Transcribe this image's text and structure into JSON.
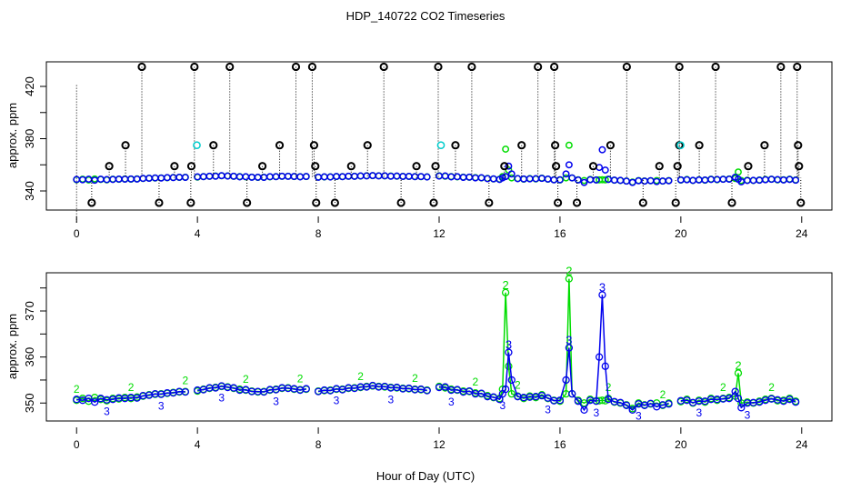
{
  "chart_data": [
    {
      "type": "scatter",
      "title": "HDP_140722  CO2 Timeseries",
      "xlabel": "",
      "ylabel": "approx. ppm",
      "xlim": [
        -1,
        25
      ],
      "ylim": [
        325.4,
        438.8
      ],
      "xticks": [
        0,
        4,
        8,
        12,
        16,
        20,
        24
      ],
      "yticks": [
        340,
        360,
        380,
        400,
        420
      ],
      "ytick_labels": [
        "340",
        "",
        "380",
        "",
        "420"
      ],
      "outliers_color": "#000000",
      "outliers": [
        [
          0.5,
          331
        ],
        [
          1.08,
          359
        ],
        [
          1.62,
          375
        ],
        [
          2.16,
          435
        ],
        [
          2.73,
          331
        ],
        [
          3.24,
          359
        ],
        [
          3.78,
          331
        ],
        [
          3.8,
          359
        ],
        [
          3.9,
          435
        ],
        [
          4.53,
          375
        ],
        [
          5.07,
          435
        ],
        [
          5.64,
          331
        ],
        [
          6.15,
          359
        ],
        [
          6.72,
          375
        ],
        [
          7.26,
          435
        ],
        [
          7.8,
          435
        ],
        [
          7.86,
          375
        ],
        [
          7.9,
          359
        ],
        [
          7.93,
          331
        ],
        [
          8.55,
          331
        ],
        [
          9.09,
          359
        ],
        [
          9.63,
          375
        ],
        [
          10.17,
          435
        ],
        [
          10.74,
          331
        ],
        [
          11.25,
          359
        ],
        [
          11.82,
          331
        ],
        [
          11.88,
          359
        ],
        [
          11.97,
          435
        ],
        [
          12.54,
          375
        ],
        [
          13.08,
          435
        ],
        [
          13.65,
          331
        ],
        [
          14.16,
          359
        ],
        [
          14.73,
          375
        ],
        [
          15.27,
          435
        ],
        [
          15.81,
          435
        ],
        [
          15.84,
          375
        ],
        [
          15.87,
          359
        ],
        [
          15.93,
          331
        ],
        [
          16.56,
          331
        ],
        [
          17.1,
          359
        ],
        [
          17.67,
          375
        ],
        [
          18.21,
          435
        ],
        [
          18.75,
          331
        ],
        [
          19.29,
          359
        ],
        [
          19.83,
          331
        ],
        [
          19.89,
          359
        ],
        [
          19.95,
          375
        ],
        [
          19.95,
          435
        ],
        [
          20.61,
          375
        ],
        [
          21.15,
          435
        ],
        [
          21.69,
          331
        ],
        [
          22.23,
          359
        ],
        [
          22.77,
          375
        ],
        [
          23.31,
          435
        ],
        [
          23.85,
          435
        ],
        [
          23.88,
          375
        ],
        [
          23.91,
          359
        ],
        [
          23.97,
          331
        ]
      ],
      "highlight_points": [
        [
          3.98,
          375,
          "#00cccc"
        ],
        [
          12.06,
          375,
          "#00cccc"
        ],
        [
          19.99,
          375,
          "#00cccc"
        ]
      ]
    },
    {
      "type": "line",
      "title": "",
      "xlabel": "Hour of Day (UTC)",
      "ylabel": "approx. ppm",
      "xlim": [
        -1,
        25
      ],
      "ylim": [
        346.1,
        378.3
      ],
      "xticks": [
        0,
        4,
        8,
        12,
        16,
        20,
        24
      ],
      "yticks": [
        350,
        355,
        360,
        365,
        370,
        375
      ],
      "ytick_labels": [
        "350",
        "",
        "360",
        "",
        "370",
        ""
      ],
      "x": [
        0,
        0.2,
        0.4,
        0.6,
        0.8,
        1.0,
        1.2,
        1.4,
        1.6,
        1.8,
        2.0,
        2.2,
        2.4,
        2.6,
        2.8,
        3.0,
        3.2,
        3.4,
        3.6,
        4.0,
        4.2,
        4.4,
        4.6,
        4.8,
        5.0,
        5.2,
        5.4,
        5.6,
        5.8,
        6.0,
        6.2,
        6.4,
        6.6,
        6.8,
        7.0,
        7.2,
        7.4,
        7.6,
        8.0,
        8.2,
        8.4,
        8.6,
        8.8,
        9.0,
        9.2,
        9.4,
        9.6,
        9.8,
        10.0,
        10.2,
        10.4,
        10.6,
        10.8,
        11.0,
        11.2,
        11.4,
        11.6,
        12.0,
        12.2,
        12.4,
        12.6,
        12.8,
        13.0,
        13.2,
        13.4,
        13.6,
        13.8,
        14.0,
        14.1,
        14.2,
        14.3,
        14.4,
        14.6,
        14.8,
        15.0,
        15.2,
        15.4,
        15.6,
        15.8,
        16.0,
        16.2,
        16.3,
        16.4,
        16.6,
        16.8,
        17.0,
        17.2,
        17.3,
        17.4,
        17.5,
        17.6,
        17.8,
        18.0,
        18.2,
        18.4,
        18.6,
        18.8,
        19.0,
        19.2,
        19.4,
        19.6,
        20.0,
        20.2,
        20.4,
        20.6,
        20.8,
        21.0,
        21.2,
        21.4,
        21.6,
        21.8,
        21.9,
        22.0,
        22.2,
        22.4,
        22.6,
        22.8,
        23.0,
        23.2,
        23.4,
        23.6,
        23.8
      ],
      "series": [
        {
          "name": "2",
          "color": "#00dd00",
          "values": [
            350.6,
            351.0,
            350.4,
            351.2,
            350.8,
            350.5,
            351.0,
            350.9,
            351.2,
            351.0,
            351.3,
            351.5,
            351.8,
            351.9,
            352.0,
            352.1,
            352.3,
            352.4,
            352.5,
            352.6,
            353.0,
            353.2,
            353.4,
            353.6,
            353.5,
            353.2,
            353.0,
            352.8,
            352.6,
            352.4,
            352.5,
            352.8,
            353.0,
            353.2,
            353.3,
            353.0,
            352.9,
            353.0,
            352.6,
            352.7,
            352.8,
            353.0,
            353.0,
            353.2,
            353.3,
            353.4,
            353.6,
            353.7,
            353.6,
            353.5,
            353.4,
            353.3,
            353.2,
            353.1,
            353.0,
            352.9,
            352.8,
            353.6,
            353.3,
            353.0,
            352.8,
            352.6,
            352.5,
            352.2,
            352.0,
            351.6,
            351.2,
            351.0,
            353.0,
            374.0,
            358.0,
            352.0,
            351.5,
            351.0,
            351.5,
            351.2,
            351.8,
            351.0,
            350.6,
            350.4,
            352.0,
            377.0,
            352.0,
            350.6,
            350.0,
            350.8,
            350.5,
            350.5,
            350.6,
            350.5,
            351.0,
            350.2,
            350.0,
            349.6,
            348.8,
            350.0,
            349.6,
            349.8,
            350.0,
            349.5,
            350.0,
            350.3,
            350.8,
            350.0,
            350.6,
            350.2,
            351.0,
            350.6,
            351.0,
            351.2,
            351.5,
            356.5,
            350.0,
            350.2,
            350.0,
            350.4,
            350.8,
            351.0,
            350.5,
            350.6,
            351.0,
            350.4
          ]
        },
        {
          "name": "3",
          "color": "#0000ee",
          "values": [
            350.8,
            350.6,
            351.0,
            350.2,
            351.0,
            350.7,
            350.8,
            351.1,
            351.0,
            351.2,
            351.1,
            351.6,
            351.7,
            352.0,
            351.9,
            352.2,
            352.2,
            352.5,
            352.4,
            352.8,
            352.9,
            353.3,
            353.3,
            353.7,
            353.4,
            353.3,
            352.8,
            352.9,
            352.5,
            352.5,
            352.4,
            352.9,
            352.9,
            353.3,
            353.2,
            353.1,
            352.8,
            353.1,
            352.5,
            352.8,
            352.7,
            353.1,
            352.9,
            353.3,
            353.2,
            353.5,
            353.5,
            353.8,
            353.5,
            353.6,
            353.3,
            353.4,
            353.1,
            353.2,
            352.9,
            353.0,
            352.7,
            353.4,
            353.5,
            352.8,
            352.9,
            352.4,
            352.6,
            352.0,
            352.1,
            351.4,
            351.3,
            350.8,
            352.0,
            353.0,
            361.0,
            355.0,
            351.4,
            351.2,
            351.3,
            351.4,
            351.6,
            351.1,
            350.5,
            350.6,
            355.0,
            362.0,
            352.0,
            350.4,
            348.5,
            350.6,
            350.4,
            360.0,
            373.5,
            358.0,
            350.8,
            350.3,
            350.1,
            349.5,
            348.5,
            349.8,
            349.5,
            349.9,
            349.2,
            349.6,
            349.8,
            350.5,
            350.6,
            350.1,
            350.4,
            350.4,
            350.8,
            350.8,
            350.9,
            351.0,
            352.5,
            351.0,
            349.0,
            350.0,
            350.1,
            350.2,
            350.6,
            350.9,
            350.7,
            350.4,
            350.8,
            350.2
          ]
        }
      ]
    }
  ]
}
